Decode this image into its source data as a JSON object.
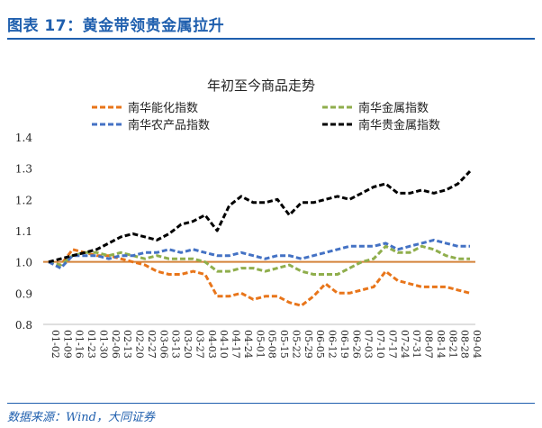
{
  "figure_title": "图表 17：黄金带领贵金属拉升",
  "source_text": "数据来源：Wind，大同证券",
  "chart_data": {
    "type": "line",
    "title": "年初至今商品走势",
    "ylim": [
      0.8,
      1.4
    ],
    "yticks": [
      "0.8",
      "0.9",
      "1.0",
      "1.1",
      "1.2",
      "1.3",
      "1.4"
    ],
    "reference_line": 1.0,
    "reference_color": "#d4833a",
    "categories": [
      "01-02",
      "01-09",
      "01-16",
      "01-23",
      "01-30",
      "02-06",
      "02-13",
      "02-20",
      "02-27",
      "03-06",
      "03-13",
      "03-20",
      "03-27",
      "04-03",
      "04-10",
      "04-17",
      "04-24",
      "05-01",
      "05-08",
      "05-15",
      "05-22",
      "05-29",
      "06-05",
      "06-12",
      "06-19",
      "06-26",
      "07-03",
      "07-10",
      "07-17",
      "07-24",
      "07-31",
      "08-07",
      "08-14",
      "08-21",
      "08-28",
      "09-04"
    ],
    "series": [
      {
        "name": "南华能化指数",
        "color": "#e8751a",
        "values": [
          1.0,
          0.99,
          1.04,
          1.03,
          1.02,
          1.02,
          1.01,
          1.0,
          0.99,
          0.97,
          0.96,
          0.96,
          0.97,
          0.96,
          0.89,
          0.89,
          0.9,
          0.88,
          0.89,
          0.89,
          0.87,
          0.86,
          0.89,
          0.93,
          0.9,
          0.9,
          0.91,
          0.92,
          0.97,
          0.94,
          0.93,
          0.92,
          0.92,
          0.92,
          0.91,
          0.9
        ]
      },
      {
        "name": "南华金属指数",
        "color": "#8fae4c",
        "values": [
          1.0,
          0.99,
          1.02,
          1.03,
          1.03,
          1.02,
          1.03,
          1.02,
          1.01,
          1.02,
          1.01,
          1.01,
          1.01,
          1.0,
          0.97,
          0.97,
          0.98,
          0.98,
          0.97,
          0.98,
          0.99,
          0.97,
          0.96,
          0.96,
          0.96,
          0.98,
          1.0,
          1.01,
          1.05,
          1.03,
          1.03,
          1.05,
          1.04,
          1.02,
          1.01,
          1.01
        ]
      },
      {
        "name": "南华农产品指数",
        "color": "#4472c4",
        "values": [
          1.0,
          0.98,
          1.02,
          1.02,
          1.02,
          1.01,
          1.02,
          1.02,
          1.03,
          1.03,
          1.04,
          1.03,
          1.04,
          1.03,
          1.02,
          1.02,
          1.03,
          1.02,
          1.01,
          1.02,
          1.02,
          1.01,
          1.02,
          1.03,
          1.04,
          1.05,
          1.05,
          1.05,
          1.06,
          1.04,
          1.05,
          1.06,
          1.07,
          1.06,
          1.05,
          1.05
        ]
      },
      {
        "name": "南华贵金属指数",
        "color": "#000000",
        "values": [
          1.0,
          1.01,
          1.02,
          1.03,
          1.04,
          1.06,
          1.08,
          1.09,
          1.08,
          1.07,
          1.09,
          1.12,
          1.13,
          1.15,
          1.1,
          1.18,
          1.21,
          1.19,
          1.19,
          1.2,
          1.15,
          1.19,
          1.19,
          1.2,
          1.21,
          1.2,
          1.22,
          1.24,
          1.25,
          1.22,
          1.22,
          1.23,
          1.22,
          1.23,
          1.25,
          1.29
        ]
      }
    ],
    "legend_order": [
      0,
      1,
      2,
      3
    ],
    "legend_placement": "top",
    "grid": false
  }
}
